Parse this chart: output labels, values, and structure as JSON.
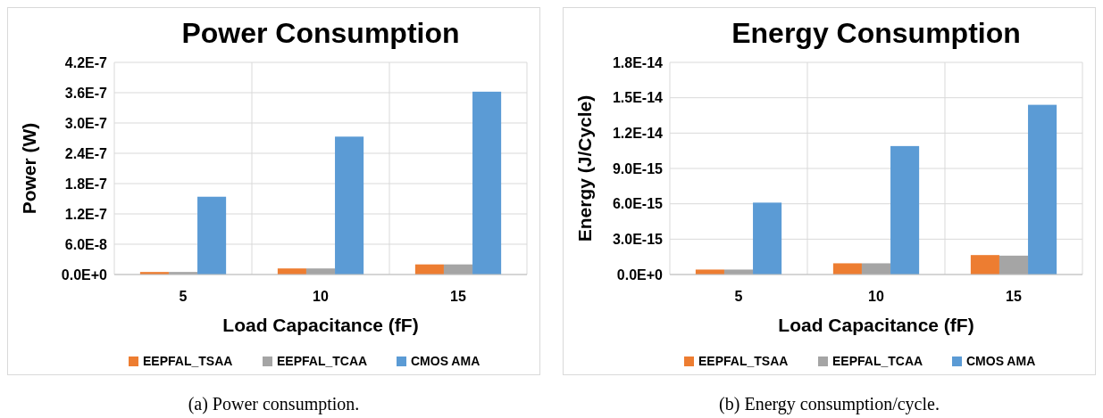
{
  "chart_data": [
    {
      "type": "bar",
      "title": "Power Consumption",
      "xlabel": "Load Capacitance (fF)",
      "ylabel": "Power (W)",
      "categories": [
        "5",
        "10",
        "15"
      ],
      "series": [
        {
          "name": "EEPFAL_TSAA",
          "color": "#ed7d31",
          "values": [
            5e-09,
            1.2e-08,
            2e-08
          ]
        },
        {
          "name": "EEPFAL_TCAA",
          "color": "#a5a5a5",
          "values": [
            5e-09,
            1.2e-08,
            2e-08
          ]
        },
        {
          "name": "CMOS AMA",
          "color": "#5b9bd5",
          "values": [
            1.54e-07,
            2.73e-07,
            3.62e-07
          ]
        }
      ],
      "ylim": [
        0,
        4.2e-07
      ],
      "yticks": [
        {
          "value": 0,
          "label": "0.0E+0"
        },
        {
          "value": 6e-08,
          "label": "6.0E-8"
        },
        {
          "value": 1.2e-07,
          "label": "1.2E-7"
        },
        {
          "value": 1.8e-07,
          "label": "1.8E-7"
        },
        {
          "value": 2.4e-07,
          "label": "2.4E-7"
        },
        {
          "value": 3e-07,
          "label": "3.0E-7"
        },
        {
          "value": 3.6e-07,
          "label": "3.6E-7"
        },
        {
          "value": 4.2e-07,
          "label": "4.2E-7"
        }
      ],
      "grid": true,
      "legend": "bottom",
      "annotations": [
        "(a) Power consumption."
      ]
    },
    {
      "type": "bar",
      "title": "Energy Consumption",
      "xlabel": "Load Capacitance (fF)",
      "ylabel": "Energy (J/Cycle)",
      "categories": [
        "5",
        "10",
        "15"
      ],
      "series": [
        {
          "name": "EEPFAL_TSAA",
          "color": "#ed7d31",
          "values": [
            4.2e-16,
            9.5e-16,
            1.65e-15
          ]
        },
        {
          "name": "EEPFAL_TCAA",
          "color": "#a5a5a5",
          "values": [
            4.2e-16,
            9.5e-16,
            1.6e-15
          ]
        },
        {
          "name": "CMOS AMA",
          "color": "#5b9bd5",
          "values": [
            6.1e-15,
            1.09e-14,
            1.44e-14
          ]
        }
      ],
      "ylim": [
        0,
        1.8e-14
      ],
      "yticks": [
        {
          "value": 0,
          "label": "0.0E+0"
        },
        {
          "value": 3e-15,
          "label": "3.0E-15"
        },
        {
          "value": 6e-15,
          "label": "6.0E-15"
        },
        {
          "value": 9e-15,
          "label": "9.0E-15"
        },
        {
          "value": 1.2e-14,
          "label": "1.2E-14"
        },
        {
          "value": 1.5e-14,
          "label": "1.5E-14"
        },
        {
          "value": 1.8e-14,
          "label": "1.8E-14"
        }
      ],
      "grid": true,
      "legend": "bottom",
      "annotations": [
        "(b) Energy consumption/cycle."
      ]
    }
  ]
}
